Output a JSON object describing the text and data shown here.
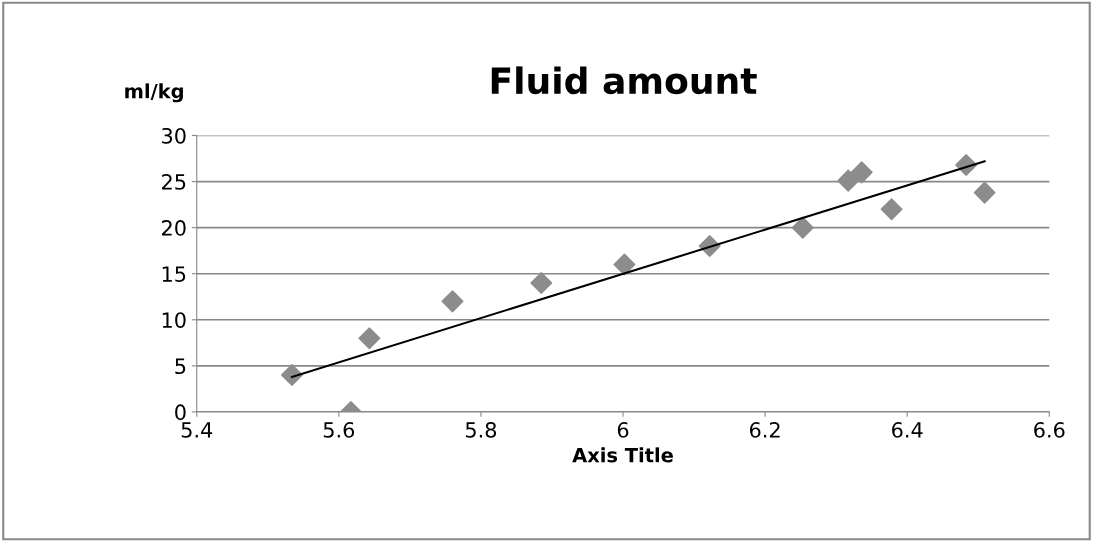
{
  "chart_data": {
    "type": "scatter",
    "title": "Fluid amount",
    "xlabel": "Axis Title",
    "ylabel": "ml/kg",
    "x": [
      5.534,
      5.617,
      5.643,
      5.76,
      5.885,
      6.002,
      6.122,
      6.253,
      6.317,
      6.336,
      6.378,
      6.483,
      6.509
    ],
    "series": [
      {
        "color": "#8c8c8c",
        "values": [
          4,
          0,
          8,
          12,
          14,
          16,
          18,
          20,
          25.1,
          26,
          22,
          26.8,
          23.8
        ],
        "marker": "diamond"
      },
      {
        "type": "line",
        "color": "#000000",
        "x": [
          5.534,
          6.509
        ],
        "values": [
          3.8,
          27.2
        ],
        "marker": "none"
      }
    ],
    "xlim": [
      5.4,
      6.6
    ],
    "xticks": [
      5.4,
      5.6,
      5.8,
      6,
      6.2,
      6.4,
      6.6
    ],
    "ylim": [
      0,
      30
    ],
    "yticks": [
      0,
      5,
      10,
      15,
      20,
      25,
      30
    ],
    "grid": "y",
    "legend": false
  }
}
